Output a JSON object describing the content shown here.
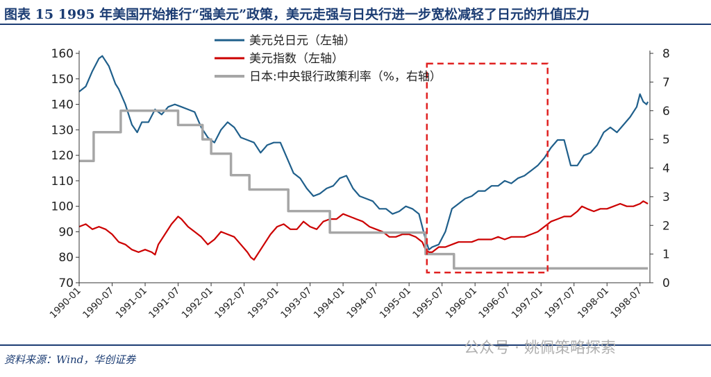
{
  "title": "图表 15   1995 年美国开始推行“强美元”政策，美元走强与日央行进一步宽松减轻了日元的升值压力",
  "source": "资料来源：Wind，华创证券",
  "watermark": "公众号 · 姚佩策略探索",
  "chart_data": {
    "type": "line",
    "x_ticks": [
      "1990-01",
      "1990-07",
      "1991-01",
      "1991-07",
      "1992-01",
      "1992-07",
      "1993-01",
      "1993-07",
      "1994-01",
      "1994-07",
      "1995-01",
      "1995-07",
      "1996-01",
      "1996-07",
      "1997-01",
      "1997-07",
      "1998-01",
      "1998-07"
    ],
    "y_left": {
      "min": 70,
      "max": 160,
      "ticks": [
        70,
        80,
        90,
        100,
        110,
        120,
        130,
        140,
        150,
        160
      ]
    },
    "y_right": {
      "min": 0,
      "max": 8,
      "ticks": [
        0,
        1,
        2,
        3,
        4,
        5,
        6,
        7,
        8
      ]
    },
    "legend_position": "top-left",
    "grid": false,
    "series": [
      {
        "name": "美元兑日元（左轴）",
        "axis": "left",
        "color": "#1f5f8b",
        "points": [
          [
            1990.0,
            145
          ],
          [
            1990.1,
            147
          ],
          [
            1990.2,
            153
          ],
          [
            1990.3,
            158
          ],
          [
            1990.35,
            159
          ],
          [
            1990.45,
            155
          ],
          [
            1990.55,
            148
          ],
          [
            1990.6,
            146
          ],
          [
            1990.7,
            140
          ],
          [
            1990.8,
            132
          ],
          [
            1990.88,
            129
          ],
          [
            1990.95,
            133
          ],
          [
            1991.05,
            133
          ],
          [
            1991.15,
            138
          ],
          [
            1991.25,
            136
          ],
          [
            1991.35,
            139
          ],
          [
            1991.45,
            140
          ],
          [
            1991.55,
            139
          ],
          [
            1991.65,
            138
          ],
          [
            1991.75,
            137
          ],
          [
            1991.85,
            131
          ],
          [
            1991.95,
            127
          ],
          [
            1992.05,
            125
          ],
          [
            1992.15,
            130
          ],
          [
            1992.25,
            133
          ],
          [
            1992.35,
            131
          ],
          [
            1992.45,
            127
          ],
          [
            1992.55,
            126
          ],
          [
            1992.65,
            125
          ],
          [
            1992.75,
            121
          ],
          [
            1992.85,
            124
          ],
          [
            1992.95,
            125
          ],
          [
            1993.05,
            125
          ],
          [
            1993.15,
            119
          ],
          [
            1993.25,
            113
          ],
          [
            1993.35,
            111
          ],
          [
            1993.45,
            107
          ],
          [
            1993.55,
            104
          ],
          [
            1993.65,
            105
          ],
          [
            1993.75,
            107
          ],
          [
            1993.85,
            108
          ],
          [
            1993.95,
            111
          ],
          [
            1994.05,
            112
          ],
          [
            1994.15,
            107
          ],
          [
            1994.25,
            104
          ],
          [
            1994.35,
            103
          ],
          [
            1994.45,
            102
          ],
          [
            1994.55,
            99
          ],
          [
            1994.65,
            99
          ],
          [
            1994.75,
            97
          ],
          [
            1994.85,
            98
          ],
          [
            1994.95,
            100
          ],
          [
            1995.05,
            99
          ],
          [
            1995.15,
            97
          ],
          [
            1995.25,
            87
          ],
          [
            1995.3,
            83
          ],
          [
            1995.35,
            84
          ],
          [
            1995.45,
            85
          ],
          [
            1995.55,
            90
          ],
          [
            1995.65,
            99
          ],
          [
            1995.75,
            101
          ],
          [
            1995.85,
            103
          ],
          [
            1995.95,
            104
          ],
          [
            1996.05,
            106
          ],
          [
            1996.15,
            106
          ],
          [
            1996.25,
            108
          ],
          [
            1996.35,
            108
          ],
          [
            1996.45,
            110
          ],
          [
            1996.55,
            109
          ],
          [
            1996.65,
            111
          ],
          [
            1996.75,
            112
          ],
          [
            1996.85,
            114
          ],
          [
            1996.95,
            116
          ],
          [
            1997.05,
            119
          ],
          [
            1997.15,
            123
          ],
          [
            1997.25,
            126
          ],
          [
            1997.35,
            126
          ],
          [
            1997.45,
            116
          ],
          [
            1997.55,
            116
          ],
          [
            1997.65,
            120
          ],
          [
            1997.75,
            121
          ],
          [
            1997.85,
            124
          ],
          [
            1997.95,
            129
          ],
          [
            1998.05,
            131
          ],
          [
            1998.15,
            129
          ],
          [
            1998.25,
            132
          ],
          [
            1998.35,
            135
          ],
          [
            1998.45,
            139
          ],
          [
            1998.5,
            144
          ],
          [
            1998.55,
            141
          ],
          [
            1998.6,
            140
          ],
          [
            1998.62,
            141
          ]
        ]
      },
      {
        "name": "美元指数（左轴）",
        "axis": "left",
        "color": "#cc0000",
        "points": [
          [
            1990.0,
            92
          ],
          [
            1990.1,
            93
          ],
          [
            1990.2,
            91
          ],
          [
            1990.3,
            92
          ],
          [
            1990.4,
            91
          ],
          [
            1990.5,
            89
          ],
          [
            1990.6,
            86
          ],
          [
            1990.7,
            85
          ],
          [
            1990.8,
            83
          ],
          [
            1990.9,
            82
          ],
          [
            1991.0,
            83
          ],
          [
            1991.1,
            82
          ],
          [
            1991.15,
            81
          ],
          [
            1991.2,
            85
          ],
          [
            1991.3,
            89
          ],
          [
            1991.4,
            93
          ],
          [
            1991.5,
            96
          ],
          [
            1991.55,
            95
          ],
          [
            1991.65,
            92
          ],
          [
            1991.75,
            90
          ],
          [
            1991.85,
            88
          ],
          [
            1991.95,
            85
          ],
          [
            1992.05,
            87
          ],
          [
            1992.15,
            90
          ],
          [
            1992.25,
            89
          ],
          [
            1992.35,
            88
          ],
          [
            1992.45,
            85
          ],
          [
            1992.55,
            82
          ],
          [
            1992.6,
            80
          ],
          [
            1992.65,
            79
          ],
          [
            1992.7,
            81
          ],
          [
            1992.8,
            85
          ],
          [
            1992.9,
            89
          ],
          [
            1993.0,
            92
          ],
          [
            1993.1,
            93
          ],
          [
            1993.2,
            91
          ],
          [
            1993.3,
            91
          ],
          [
            1993.4,
            94
          ],
          [
            1993.5,
            92
          ],
          [
            1993.6,
            91
          ],
          [
            1993.7,
            94
          ],
          [
            1993.8,
            95
          ],
          [
            1993.9,
            95
          ],
          [
            1994.0,
            97
          ],
          [
            1994.1,
            96
          ],
          [
            1994.2,
            95
          ],
          [
            1994.3,
            94
          ],
          [
            1994.4,
            92
          ],
          [
            1994.5,
            91
          ],
          [
            1994.6,
            90
          ],
          [
            1994.7,
            88
          ],
          [
            1994.8,
            88
          ],
          [
            1994.9,
            89
          ],
          [
            1995.0,
            89
          ],
          [
            1995.1,
            88
          ],
          [
            1995.2,
            86
          ],
          [
            1995.25,
            83
          ],
          [
            1995.3,
            82
          ],
          [
            1995.35,
            82
          ],
          [
            1995.45,
            84
          ],
          [
            1995.55,
            84
          ],
          [
            1995.65,
            85
          ],
          [
            1995.75,
            86
          ],
          [
            1995.85,
            86
          ],
          [
            1995.95,
            86
          ],
          [
            1996.05,
            87
          ],
          [
            1996.15,
            87
          ],
          [
            1996.25,
            87
          ],
          [
            1996.35,
            88
          ],
          [
            1996.45,
            87
          ],
          [
            1996.55,
            88
          ],
          [
            1996.65,
            88
          ],
          [
            1996.75,
            88
          ],
          [
            1996.85,
            89
          ],
          [
            1996.95,
            90
          ],
          [
            1997.05,
            92
          ],
          [
            1997.15,
            94
          ],
          [
            1997.25,
            95
          ],
          [
            1997.35,
            96
          ],
          [
            1997.45,
            96
          ],
          [
            1997.55,
            98
          ],
          [
            1997.62,
            100
          ],
          [
            1997.7,
            99
          ],
          [
            1997.8,
            98
          ],
          [
            1997.9,
            99
          ],
          [
            1998.0,
            99
          ],
          [
            1998.1,
            100
          ],
          [
            1998.2,
            101
          ],
          [
            1998.3,
            100
          ],
          [
            1998.4,
            100
          ],
          [
            1998.5,
            101
          ],
          [
            1998.55,
            102
          ],
          [
            1998.62,
            101
          ]
        ]
      },
      {
        "name": "日本:中央银行政策利率（%，右轴）",
        "axis": "right",
        "color": "#a6a6a6",
        "step": true,
        "points": [
          [
            1990.0,
            4.25
          ],
          [
            1990.22,
            5.25
          ],
          [
            1990.63,
            6.0
          ],
          [
            1991.5,
            5.5
          ],
          [
            1991.87,
            5.0
          ],
          [
            1992.0,
            4.5
          ],
          [
            1992.3,
            3.75
          ],
          [
            1992.58,
            3.25
          ],
          [
            1993.17,
            2.5
          ],
          [
            1993.8,
            1.75
          ],
          [
            1995.25,
            1.0
          ],
          [
            1995.68,
            0.5
          ],
          [
            1998.62,
            0.5
          ]
        ]
      }
    ],
    "highlight_box": {
      "x_start": 1995.27,
      "x_end": 1997.1,
      "y_top": 156,
      "y_bottom": 74,
      "color": "#e02020",
      "style": "dashed"
    }
  }
}
